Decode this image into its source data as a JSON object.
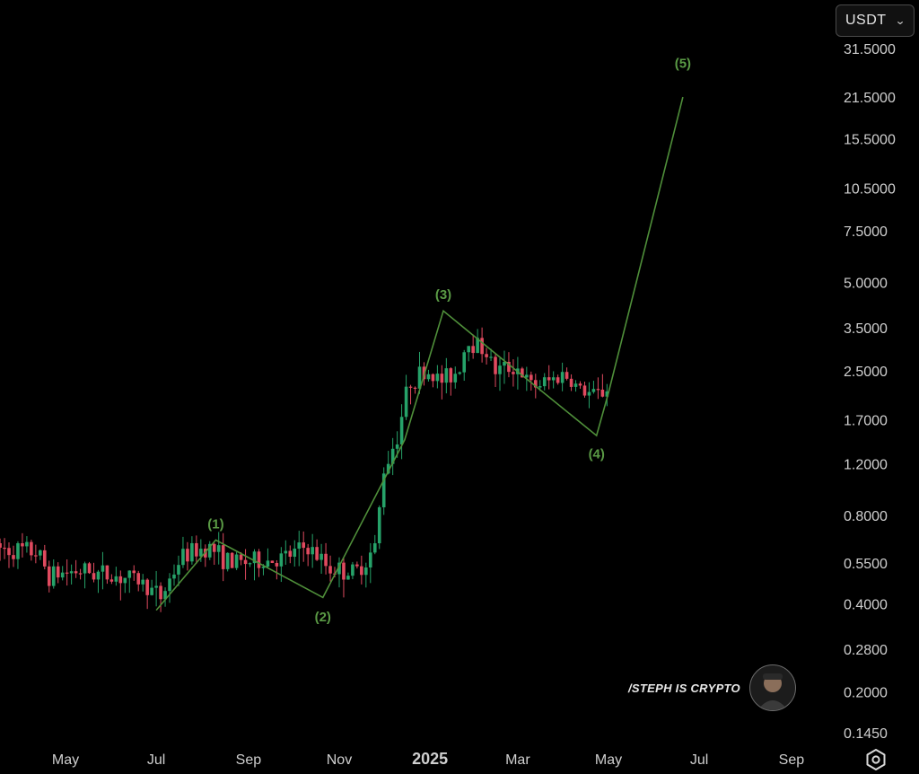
{
  "header": {
    "currency": "USDT"
  },
  "watermark": {
    "text": "/STEPH IS CRYPTO"
  },
  "icons": {
    "settings": "gear-icon",
    "currency_dropdown": "chevron-down-icon"
  },
  "colors": {
    "up": "#26a269",
    "down": "#e04a5f",
    "wave": "#4f8f3a",
    "wave_label": "#5a9a45",
    "axis_text": "#cfcfcf"
  },
  "chart_data": {
    "type": "candlestick",
    "scale": "log",
    "yticks": [
      "31.5000",
      "21.5000",
      "15.5000",
      "10.5000",
      "7.5000",
      "5.0000",
      "3.5000",
      "2.5000",
      "1.7000",
      "1.2000",
      "0.8000",
      "0.5500",
      "0.4000",
      "0.2800",
      "0.2000",
      "0.1450"
    ],
    "xticks": [
      {
        "label": "May",
        "date": "2024-05-01",
        "bold": false
      },
      {
        "label": "Jul",
        "date": "2024-07-01",
        "bold": false
      },
      {
        "label": "Sep",
        "date": "2024-09-01",
        "bold": false
      },
      {
        "label": "Nov",
        "date": "2024-11-01",
        "bold": false
      },
      {
        "label": "2025",
        "date": "2025-01-01",
        "bold": true
      },
      {
        "label": "Mar",
        "date": "2025-03-01",
        "bold": false
      },
      {
        "label": "May",
        "date": "2025-05-01",
        "bold": false
      },
      {
        "label": "Jul",
        "date": "2025-07-01",
        "bold": false
      },
      {
        "label": "Sep",
        "date": "2025-09-01",
        "bold": false
      }
    ],
    "candles_anchor_price": [
      [
        "2024-03-15",
        0.62
      ],
      [
        "2024-04-12",
        0.6
      ],
      [
        "2024-04-20",
        0.5
      ],
      [
        "2024-05-10",
        0.52
      ],
      [
        "2024-06-01",
        0.5
      ],
      [
        "2024-06-20",
        0.48
      ],
      [
        "2024-07-04",
        0.42
      ],
      [
        "2024-07-18",
        0.58
      ],
      [
        "2024-08-05",
        0.63
      ],
      [
        "2024-08-20",
        0.55
      ],
      [
        "2024-09-10",
        0.56
      ],
      [
        "2024-09-25",
        0.57
      ],
      [
        "2024-10-10",
        0.63
      ],
      [
        "2024-10-25",
        0.53
      ],
      [
        "2024-11-12",
        0.51
      ],
      [
        "2024-11-25",
        0.62
      ],
      [
        "2024-12-01",
        1.15
      ],
      [
        "2024-12-10",
        1.5
      ],
      [
        "2024-12-18",
        2.3
      ],
      [
        "2024-12-30",
        2.5
      ],
      [
        "2025-01-08",
        2.3
      ],
      [
        "2025-01-20",
        2.5
      ],
      [
        "2025-01-26",
        3.2
      ],
      [
        "2025-02-06",
        3.0
      ],
      [
        "2025-02-14",
        2.5
      ],
      [
        "2025-02-28",
        2.6
      ],
      [
        "2025-03-10",
        2.2
      ],
      [
        "2025-03-22",
        2.3
      ],
      [
        "2025-04-01",
        2.45
      ],
      [
        "2025-04-12",
        2.15
      ],
      [
        "2025-04-22",
        2.05
      ],
      [
        "2025-05-01",
        2.18
      ]
    ],
    "wave_path": [
      {
        "date": "2024-07-01",
        "price": 0.38
      },
      {
        "date": "2024-08-10",
        "price": 0.66
      },
      {
        "date": "2024-10-21",
        "price": 0.42
      },
      {
        "date": "2024-12-15",
        "price": 1.45
      },
      {
        "date": "2025-01-10",
        "price": 4.0
      },
      {
        "date": "2025-02-20",
        "price": 2.7
      },
      {
        "date": "2025-04-23",
        "price": 1.5
      },
      {
        "date": "2025-05-01",
        "price": 2.1
      },
      {
        "date": "2025-06-20",
        "price": 21.5
      }
    ],
    "wave_labels": [
      {
        "label": "(1)",
        "date": "2024-08-10",
        "price": 0.75,
        "place": "above"
      },
      {
        "label": "(2)",
        "date": "2024-10-21",
        "price": 0.36,
        "place": "below"
      },
      {
        "label": "(3)",
        "date": "2025-01-10",
        "price": 4.55,
        "place": "above"
      },
      {
        "label": "(4)",
        "date": "2025-04-23",
        "price": 1.3,
        "place": "below"
      },
      {
        "label": "(5)",
        "date": "2025-06-20",
        "price": 28.0,
        "place": "above"
      }
    ]
  }
}
